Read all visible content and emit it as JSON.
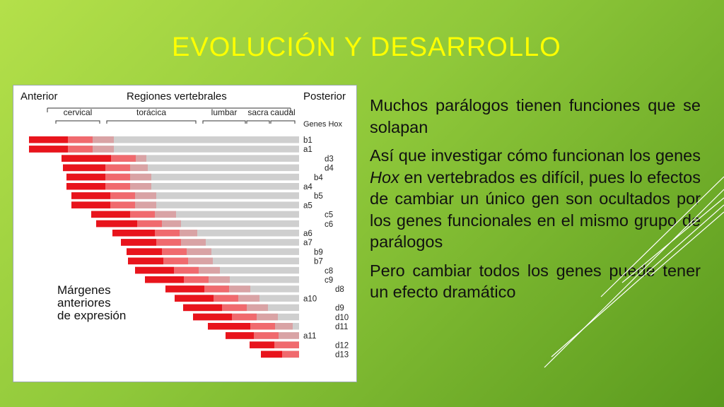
{
  "slide": {
    "title": "EVOLUCIÓN Y DESARROLLO"
  },
  "figure": {
    "header": {
      "anterior": "Anterior",
      "regiones": "Regiones vertebrales",
      "posterior": "Posterior",
      "genes_hox": "Genes Hox"
    },
    "regions": [
      "cervical",
      "torácica",
      "lumbar",
      "sacra",
      "caudal"
    ],
    "caption_lines": [
      "Márgenes",
      "anteriores",
      "de expresión"
    ],
    "genes": [
      {
        "label": "b1",
        "col": 0
      },
      {
        "label": "a1",
        "col": 0
      },
      {
        "label": "d3",
        "col": 2
      },
      {
        "label": "d4",
        "col": 2
      },
      {
        "label": "b4",
        "col": 1
      },
      {
        "label": "a4",
        "col": 0
      },
      {
        "label": "b5",
        "col": 1
      },
      {
        "label": "a5",
        "col": 0
      },
      {
        "label": "c5",
        "col": 2
      },
      {
        "label": "c6",
        "col": 2
      },
      {
        "label": "a6",
        "col": 0
      },
      {
        "label": "a7",
        "col": 0
      },
      {
        "label": "b9",
        "col": 1
      },
      {
        "label": "b7",
        "col": 1
      },
      {
        "label": "c8",
        "col": 2
      },
      {
        "label": "c9",
        "col": 2
      },
      {
        "label": "d8",
        "col": 3
      },
      {
        "label": "a10",
        "col": 0
      },
      {
        "label": "d9",
        "col": 3
      },
      {
        "label": "d10",
        "col": 3
      },
      {
        "label": "d11",
        "col": 3
      },
      {
        "label": "a11",
        "col": 0
      },
      {
        "label": "d12",
        "col": 3
      },
      {
        "label": "d13",
        "col": 3
      }
    ],
    "colors": {
      "strong": "#e8141c",
      "medium": "#f06a6e",
      "light": "#d9a3a5",
      "track": "#cfcfcf"
    }
  },
  "text": {
    "p1": "Muchos parálogos tienen funciones que se solapan",
    "p2_pre": "Así que investigar cómo funcionan los genes ",
    "p2_em": "Hox",
    "p2_post": " en vertebrados es difícil, pues lo efectos de cambiar un único gen son ocultados por los genes funcionales en el mismo grupo de parálogos",
    "p3": "Pero cambiar todos los genes puede tener un efecto dramático"
  }
}
